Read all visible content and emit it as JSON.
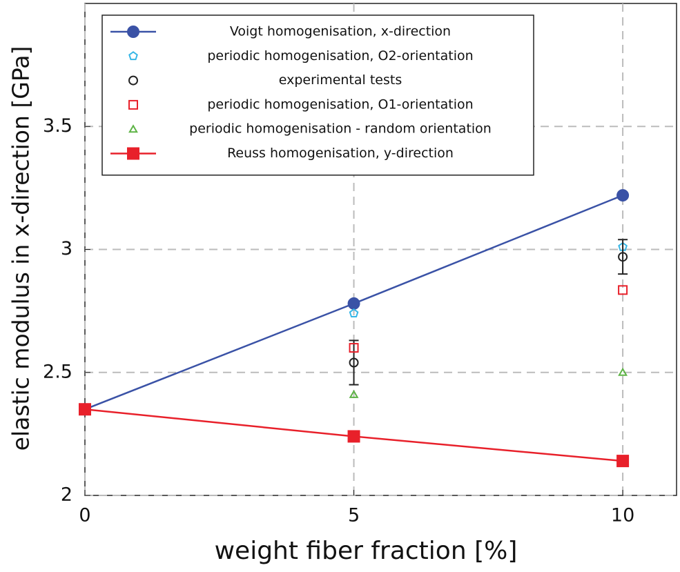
{
  "chart_data": {
    "type": "line",
    "xlabel": "weight fiber fraction [%]",
    "ylabel": "elastic modulus in x-direction [GPa]",
    "x": [
      0,
      5,
      10
    ],
    "xlim": [
      0,
      11
    ],
    "xticks": [
      0,
      5,
      10
    ],
    "ylim": [
      2,
      4
    ],
    "yticks": [
      2,
      2.5,
      3,
      3.5
    ],
    "grid": true,
    "legend": "upper left",
    "series": [
      {
        "name": "Voigt homogenisation, x-direction",
        "color": "#3a52a6",
        "marker": "circle",
        "filled": true,
        "line": true,
        "values": [
          2.35,
          2.78,
          3.22
        ]
      },
      {
        "name": "periodic homogenisation, O2-orientation",
        "color": "#35b6e6",
        "marker": "pentagon",
        "filled": false,
        "line": false,
        "values": [
          null,
          2.74,
          3.01
        ]
      },
      {
        "name": "experimental tests",
        "color": "#222222",
        "marker": "circle",
        "filled": false,
        "line": false,
        "values": [
          null,
          2.54,
          2.97
        ],
        "errors": [
          null,
          0.09,
          0.07
        ]
      },
      {
        "name": "periodic homogenisation, O1-orientation",
        "color": "#e8202a",
        "marker": "square",
        "filled": false,
        "line": false,
        "values": [
          null,
          2.6,
          2.835
        ]
      },
      {
        "name": "periodic homogenisation - random orientation",
        "color": "#5db345",
        "marker": "triangle",
        "filled": false,
        "line": false,
        "values": [
          null,
          2.41,
          2.5
        ]
      },
      {
        "name": "Reuss homogenisation, y-direction",
        "color": "#e8202a",
        "marker": "square",
        "filled": true,
        "line": true,
        "values": [
          2.35,
          2.24,
          2.14
        ]
      }
    ]
  }
}
